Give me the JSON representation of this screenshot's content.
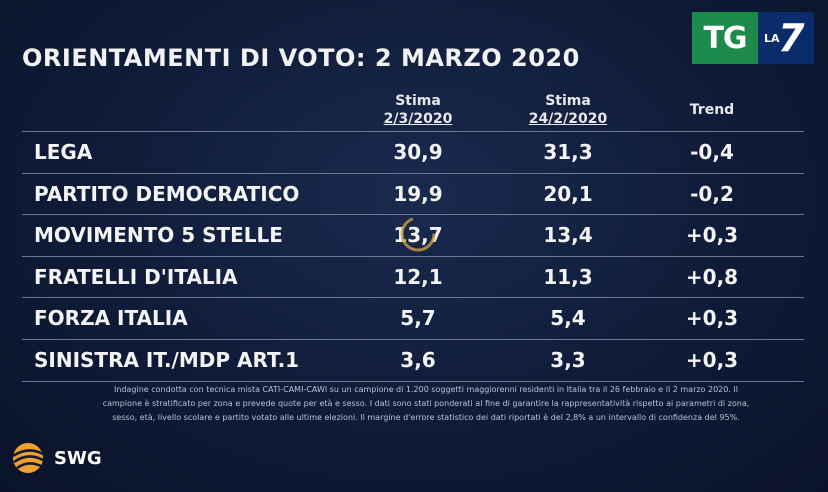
{
  "title": "ORIENTAMENTI DI VOTO: 2 MARZO 2020",
  "logo": {
    "tg": "TG",
    "la": "LA",
    "seven": "7"
  },
  "chart_data": {
    "type": "table",
    "title": "ORIENTAMENTI DI VOTO: 2 MARZO 2020",
    "columns": [
      {
        "line1": "Stima",
        "line2": "2/3/2020"
      },
      {
        "line1": "Stima",
        "line2": "24/2/2020"
      },
      {
        "line1": "Trend",
        "line2": ""
      }
    ],
    "rows": [
      {
        "party": "LEGA",
        "values": [
          "30,9",
          "31,3",
          "-0,4"
        ]
      },
      {
        "party": "PARTITO DEMOCRATICO",
        "values": [
          "19,9",
          "20,1",
          "-0,2"
        ]
      },
      {
        "party": "MOVIMENTO 5 STELLE",
        "values": [
          "13,7",
          "13,4",
          "+0,3"
        ]
      },
      {
        "party": "FRATELLI D'ITALIA",
        "values": [
          "12,1",
          "11,3",
          "+0,8"
        ]
      },
      {
        "party": "FORZA ITALIA",
        "values": [
          "5,7",
          "5,4",
          "+0,3"
        ]
      },
      {
        "party": "SINISTRA IT./MDP ART.1",
        "values": [
          "3,6",
          "3,3",
          "+0,3"
        ]
      }
    ]
  },
  "footnote": [
    "Indagine condotta con tecnica mista CATI-CAMI-CAWI su un campione di 1.200 soggetti maggiorenni residenti in Italia tra il 26 febbraio e il 2 marzo 2020. Il",
    "campione è stratificato per zona e prevede quote per età e sesso. I dati sono stati ponderati al fine di garantire la rappresentatività rispetto ai parametri di zona,",
    "sesso, età, livello scolare e partito votato alle ultime elezioni. Il margine d'errore statistico dei dati riportati è del 2,8% a un intervallo di confidenza del 95%."
  ],
  "brand": "SWG",
  "colors": {
    "logo_green": "#1e8a4a",
    "logo_blue": "#0b2c6b",
    "swg_orange": "#f0a030"
  }
}
